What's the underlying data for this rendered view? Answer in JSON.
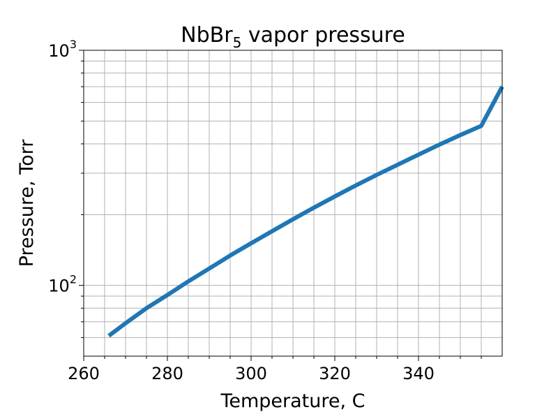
{
  "chart_data": {
    "type": "line",
    "title": {
      "prefix": "NbBr",
      "subscript": "5",
      "suffix": " vapor pressure"
    },
    "xlabel": "Temperature, C",
    "ylabel": "Pressure, Torr",
    "xlim": [
      260,
      360
    ],
    "ylim": [
      50,
      1000
    ],
    "yscale": "log",
    "grid": true,
    "x_ticks": [
      {
        "value": 260,
        "label": "260"
      },
      {
        "value": 280,
        "label": "280"
      },
      {
        "value": 300,
        "label": "300"
      },
      {
        "value": 320,
        "label": "320"
      },
      {
        "value": 340,
        "label": "340"
      }
    ],
    "x_minor_ticks": [
      265,
      270,
      275,
      285,
      290,
      295,
      305,
      310,
      315,
      325,
      330,
      335,
      345,
      350,
      355
    ],
    "y_ticks": [
      {
        "value": 100,
        "base": "10",
        "exponent": "2"
      },
      {
        "value": 1000,
        "base": "10",
        "exponent": "3"
      }
    ],
    "y_minor_ticks": [
      60,
      70,
      80,
      90,
      200,
      300,
      400,
      500,
      600,
      700,
      800,
      900
    ],
    "series": [
      {
        "color": "#1f77b4",
        "x": [
          266,
          270,
          275,
          280,
          285,
          290,
          295,
          300,
          305,
          310,
          315,
          320,
          325,
          330,
          335,
          340,
          345,
          350,
          355,
          360
        ],
        "y": [
          61,
          69,
          80,
          91,
          104,
          118,
          134,
          151,
          170,
          191,
          214,
          239,
          266,
          295,
          326,
          360,
          397,
          436,
          477,
          700
        ]
      }
    ]
  }
}
